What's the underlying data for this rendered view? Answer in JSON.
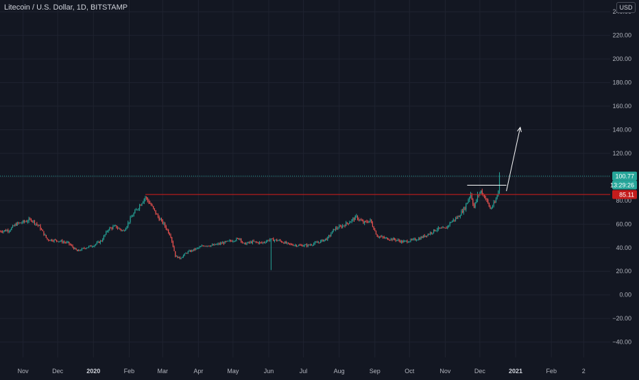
{
  "header": {
    "symbol_title": "Litecoin / U.S. Dollar, 1D, BITSTAMP",
    "currency": "USD"
  },
  "colors": {
    "background": "#131722",
    "grid": "#1f2330",
    "text": "#b2b5be",
    "up": "#26a69a",
    "down": "#ef5350",
    "resistance": "#c41c1c",
    "price_badge": "#26a69a",
    "annotation": "#ffffff"
  },
  "price_badges": {
    "last_price": "100.77",
    "countdown": "13:29:26",
    "level": "85.11"
  },
  "chart_data": {
    "type": "candlestick",
    "title": "Litecoin / U.S. Dollar, 1D, BITSTAMP",
    "ylabel": "USD",
    "ylim": [
      -53,
      250
    ],
    "y_ticks": [
      240,
      220,
      200,
      180,
      160,
      140,
      120,
      100,
      80,
      60,
      40,
      20,
      0,
      -20,
      -40
    ],
    "y_tick_labels": [
      "240.00",
      "220.00",
      "200.00",
      "180.00",
      "160.00",
      "140.00",
      "120.00",
      "100.00",
      "80.00",
      "60.00",
      "40.00",
      "20.00",
      "0.00",
      "−20.00",
      "−40.00"
    ],
    "x_tick_labels": [
      {
        "label": "Nov",
        "date": "2019-11-01"
      },
      {
        "label": "Dec",
        "date": "2019-12-01"
      },
      {
        "label": "2020",
        "date": "2020-01-01"
      },
      {
        "label": "Feb",
        "date": "2020-02-01"
      },
      {
        "label": "Mar",
        "date": "2020-03-01"
      },
      {
        "label": "Apr",
        "date": "2020-04-01"
      },
      {
        "label": "May",
        "date": "2020-05-01"
      },
      {
        "label": "Jun",
        "date": "2020-06-01"
      },
      {
        "label": "Jul",
        "date": "2020-07-01"
      },
      {
        "label": "Aug",
        "date": "2020-08-01"
      },
      {
        "label": "Sep",
        "date": "2020-09-01"
      },
      {
        "label": "Oct",
        "date": "2020-10-01"
      },
      {
        "label": "Nov",
        "date": "2020-11-01"
      },
      {
        "label": "Dec",
        "date": "2020-12-01"
      },
      {
        "label": "2021",
        "date": "2021-01-01"
      },
      {
        "label": "Feb",
        "date": "2021-02-01"
      },
      {
        "label": "2",
        "date": "2021-03-01"
      }
    ],
    "xlim": [
      "2019-10-12",
      "2021-03-24"
    ],
    "close_anchors": [
      [
        "2019-10-12",
        54
      ],
      [
        "2019-10-20",
        55
      ],
      [
        "2019-10-26",
        60
      ],
      [
        "2019-11-02",
        62
      ],
      [
        "2019-11-08",
        64
      ],
      [
        "2019-11-15",
        58
      ],
      [
        "2019-11-22",
        47
      ],
      [
        "2019-12-01",
        46
      ],
      [
        "2019-12-10",
        44
      ],
      [
        "2019-12-18",
        37
      ],
      [
        "2019-12-25",
        40
      ],
      [
        "2020-01-01",
        42
      ],
      [
        "2020-01-08",
        46
      ],
      [
        "2020-01-14",
        56
      ],
      [
        "2020-01-20",
        58
      ],
      [
        "2020-01-27",
        54
      ],
      [
        "2020-02-03",
        66
      ],
      [
        "2020-02-10",
        76
      ],
      [
        "2020-02-15",
        83
      ],
      [
        "2020-02-20",
        76
      ],
      [
        "2020-02-26",
        66
      ],
      [
        "2020-03-02",
        60
      ],
      [
        "2020-03-08",
        50
      ],
      [
        "2020-03-12",
        33
      ],
      [
        "2020-03-16",
        31
      ],
      [
        "2020-03-22",
        36
      ],
      [
        "2020-03-30",
        39
      ],
      [
        "2020-04-06",
        42
      ],
      [
        "2020-04-14",
        42
      ],
      [
        "2020-04-22",
        44
      ],
      [
        "2020-04-30",
        46
      ],
      [
        "2020-05-07",
        48
      ],
      [
        "2020-05-10",
        43
      ],
      [
        "2020-05-18",
        45
      ],
      [
        "2020-05-26",
        44
      ],
      [
        "2020-06-02",
        47
      ],
      [
        "2020-06-10",
        46
      ],
      [
        "2020-06-18",
        43
      ],
      [
        "2020-06-26",
        42
      ],
      [
        "2020-07-05",
        42
      ],
      [
        "2020-07-15",
        45
      ],
      [
        "2020-07-22",
        48
      ],
      [
        "2020-07-28",
        56
      ],
      [
        "2020-08-03",
        58
      ],
      [
        "2020-08-10",
        62
      ],
      [
        "2020-08-16",
        66
      ],
      [
        "2020-08-22",
        61
      ],
      [
        "2020-08-28",
        63
      ],
      [
        "2020-09-03",
        50
      ],
      [
        "2020-09-10",
        48
      ],
      [
        "2020-09-18",
        47
      ],
      [
        "2020-09-25",
        45
      ],
      [
        "2020-10-02",
        46
      ],
      [
        "2020-10-10",
        48
      ],
      [
        "2020-10-18",
        52
      ],
      [
        "2020-10-25",
        56
      ],
      [
        "2020-11-01",
        56
      ],
      [
        "2020-11-06",
        62
      ],
      [
        "2020-11-12",
        66
      ],
      [
        "2020-11-18",
        74
      ],
      [
        "2020-11-23",
        86
      ],
      [
        "2020-11-26",
        74
      ],
      [
        "2020-11-29",
        84
      ],
      [
        "2020-12-02",
        88
      ],
      [
        "2020-12-06",
        82
      ],
      [
        "2020-12-10",
        73
      ],
      [
        "2020-12-14",
        78
      ],
      [
        "2020-12-17",
        88
      ],
      [
        "2020-12-18",
        100.77
      ]
    ],
    "wick_events": [
      {
        "date": "2020-06-03",
        "low": 21
      },
      {
        "date": "2020-12-18",
        "high": 104
      }
    ],
    "annotations": {
      "resistance_level": 85.11,
      "resistance_start": "2020-02-15",
      "double_top_level": 93,
      "double_top_start": "2020-11-20",
      "double_top_end": "2020-12-24",
      "projection_start": {
        "date": "2020-12-24",
        "value": 88
      },
      "projection_end": {
        "date": "2021-01-05",
        "value": 142
      },
      "last_price_line": 100.77
    }
  }
}
